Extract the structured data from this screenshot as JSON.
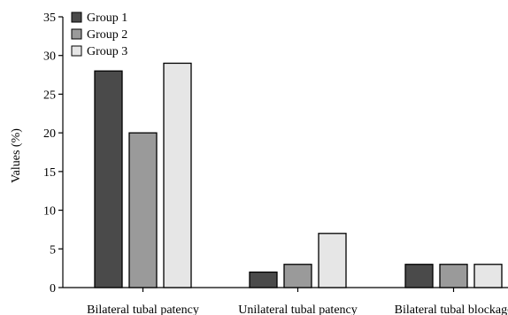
{
  "chart_data": {
    "type": "bar",
    "ylabel": "Values (%)",
    "xlabel": "",
    "ylim": [
      0,
      35
    ],
    "yticks": [
      0,
      5,
      10,
      15,
      20,
      25,
      30,
      35
    ],
    "categories": [
      "Bilateral tubal patency",
      "Unilateral tubal patency",
      "Bilateral tubal blockage"
    ],
    "series": [
      {
        "name": "Group 1",
        "color": "#4a4a4a",
        "values": [
          28,
          2,
          3
        ]
      },
      {
        "name": "Group 2",
        "color": "#9a9a9a",
        "values": [
          20,
          3,
          3
        ]
      },
      {
        "name": "Group 3",
        "color": "#e6e6e6",
        "values": [
          29,
          7,
          3
        ]
      }
    ],
    "grid": false,
    "legend_position": "top-left"
  }
}
